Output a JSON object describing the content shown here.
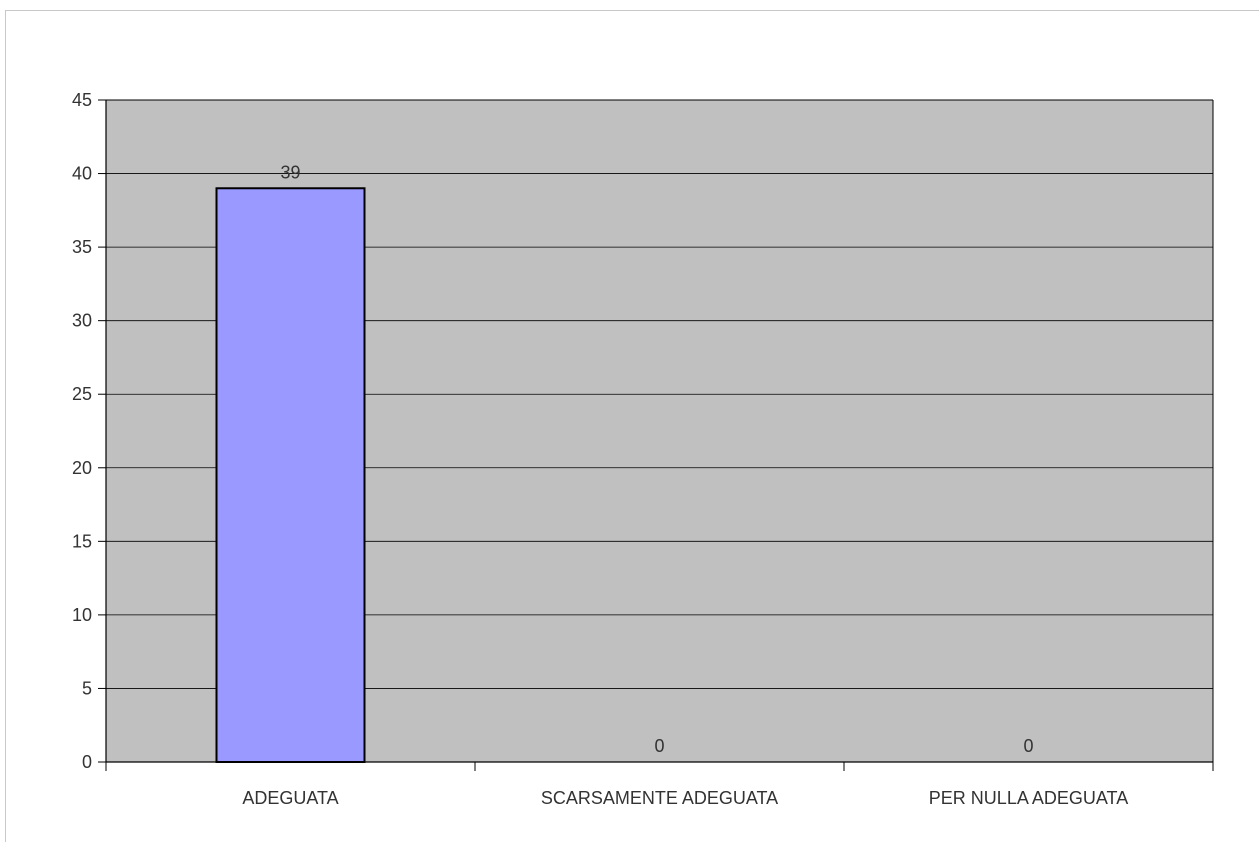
{
  "chart_data": {
    "type": "bar",
    "categories": [
      "ADEGUATA",
      "SCARSAMENTE ADEGUATA",
      "PER NULLA ADEGUATA"
    ],
    "values": [
      39,
      0,
      0
    ],
    "data_labels": [
      "39",
      "0",
      "0"
    ],
    "ylim": [
      0,
      45
    ],
    "yticks": [
      0,
      5,
      10,
      15,
      20,
      25,
      30,
      35,
      40,
      45
    ],
    "grid": true,
    "legend": "none",
    "colors": {
      "bar": "#9999ff",
      "bar_border": "#000000",
      "plot_background": "#c0c0c0",
      "gridline": "#000000"
    }
  }
}
